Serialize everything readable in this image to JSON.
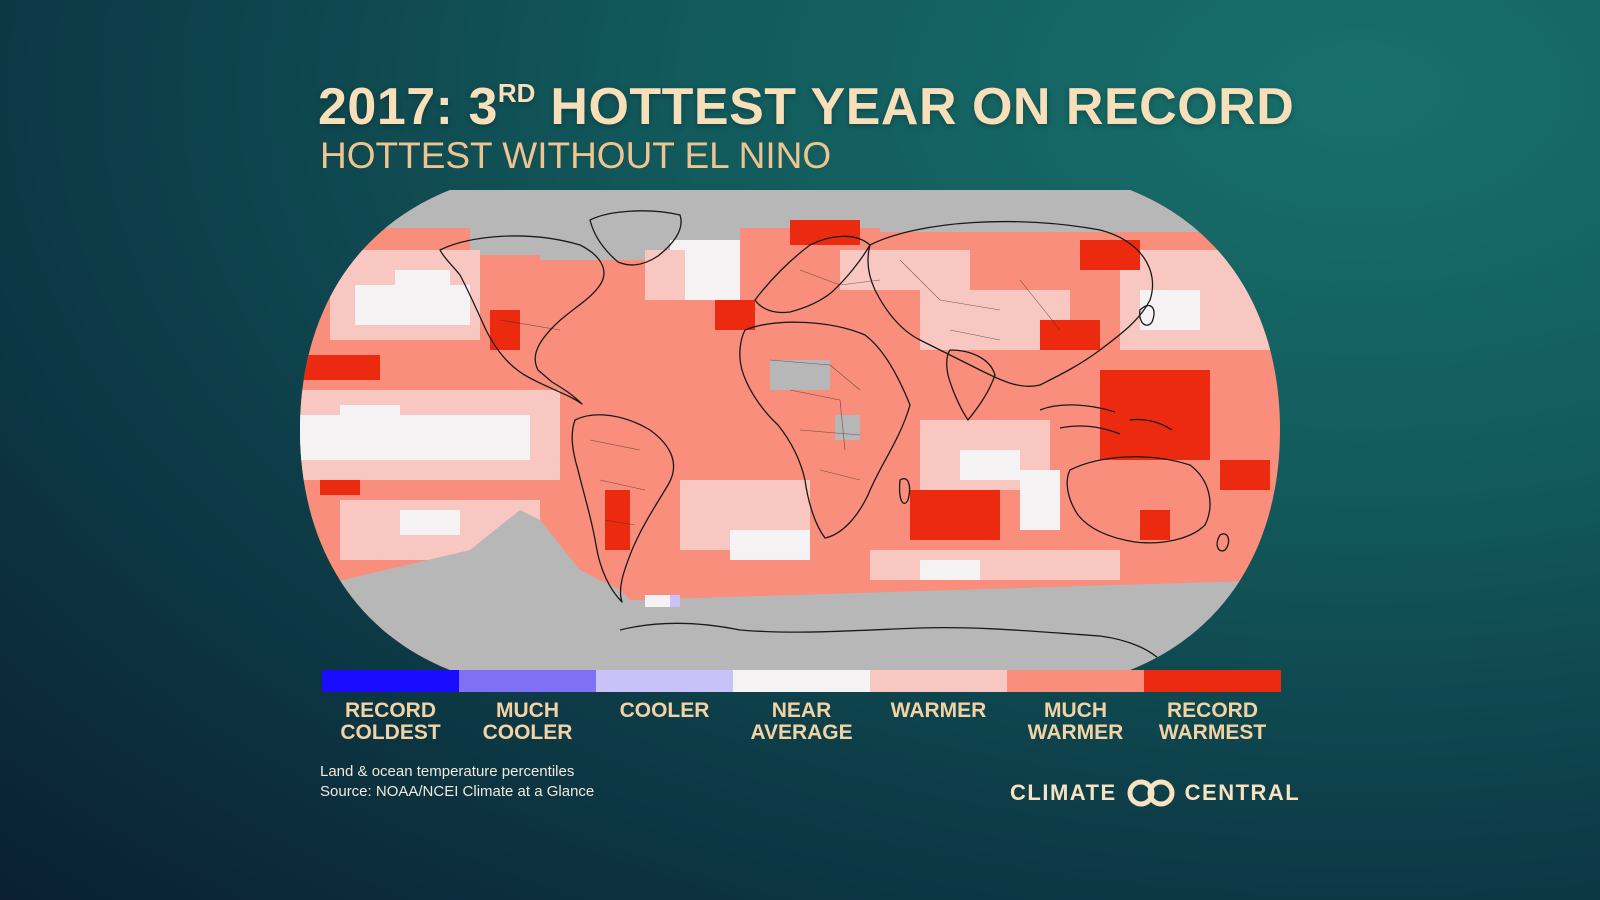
{
  "header": {
    "title_main": "2017: 3",
    "title_sup": "RD",
    "title_rest": " HOTTEST YEAR ON RECORD",
    "subtitle": "HOTTEST WITHOUT EL NINO"
  },
  "legend": [
    {
      "line1": "RECORD",
      "line2": "COLDEST",
      "color": "#1a0dff"
    },
    {
      "line1": "MUCH",
      "line2": "COOLER",
      "color": "#7f70f5"
    },
    {
      "line1": "COOLER",
      "line2": "",
      "color": "#c8c2f9"
    },
    {
      "line1": "NEAR",
      "line2": "AVERAGE",
      "color": "#f4f2f3"
    },
    {
      "line1": "WARMER",
      "line2": "",
      "color": "#f9c7c1"
    },
    {
      "line1": "MUCH",
      "line2": "WARMER",
      "color": "#f88e7b"
    },
    {
      "line1": "RECORD",
      "line2": "WARMEST",
      "color": "#ec2a10"
    }
  ],
  "footnote": {
    "line1": "Land & ocean temperature percentiles",
    "line2": "Source: NOAA/NCEI Climate at a Glance"
  },
  "logo": {
    "left_text": "CLIMATE",
    "right_text": "CENTRAL",
    "icon": "interlocking-rings-icon"
  },
  "map": {
    "projection": "robinson",
    "no_data_color": "#b7b7b7",
    "coastline_color": "#1a1a1a"
  }
}
